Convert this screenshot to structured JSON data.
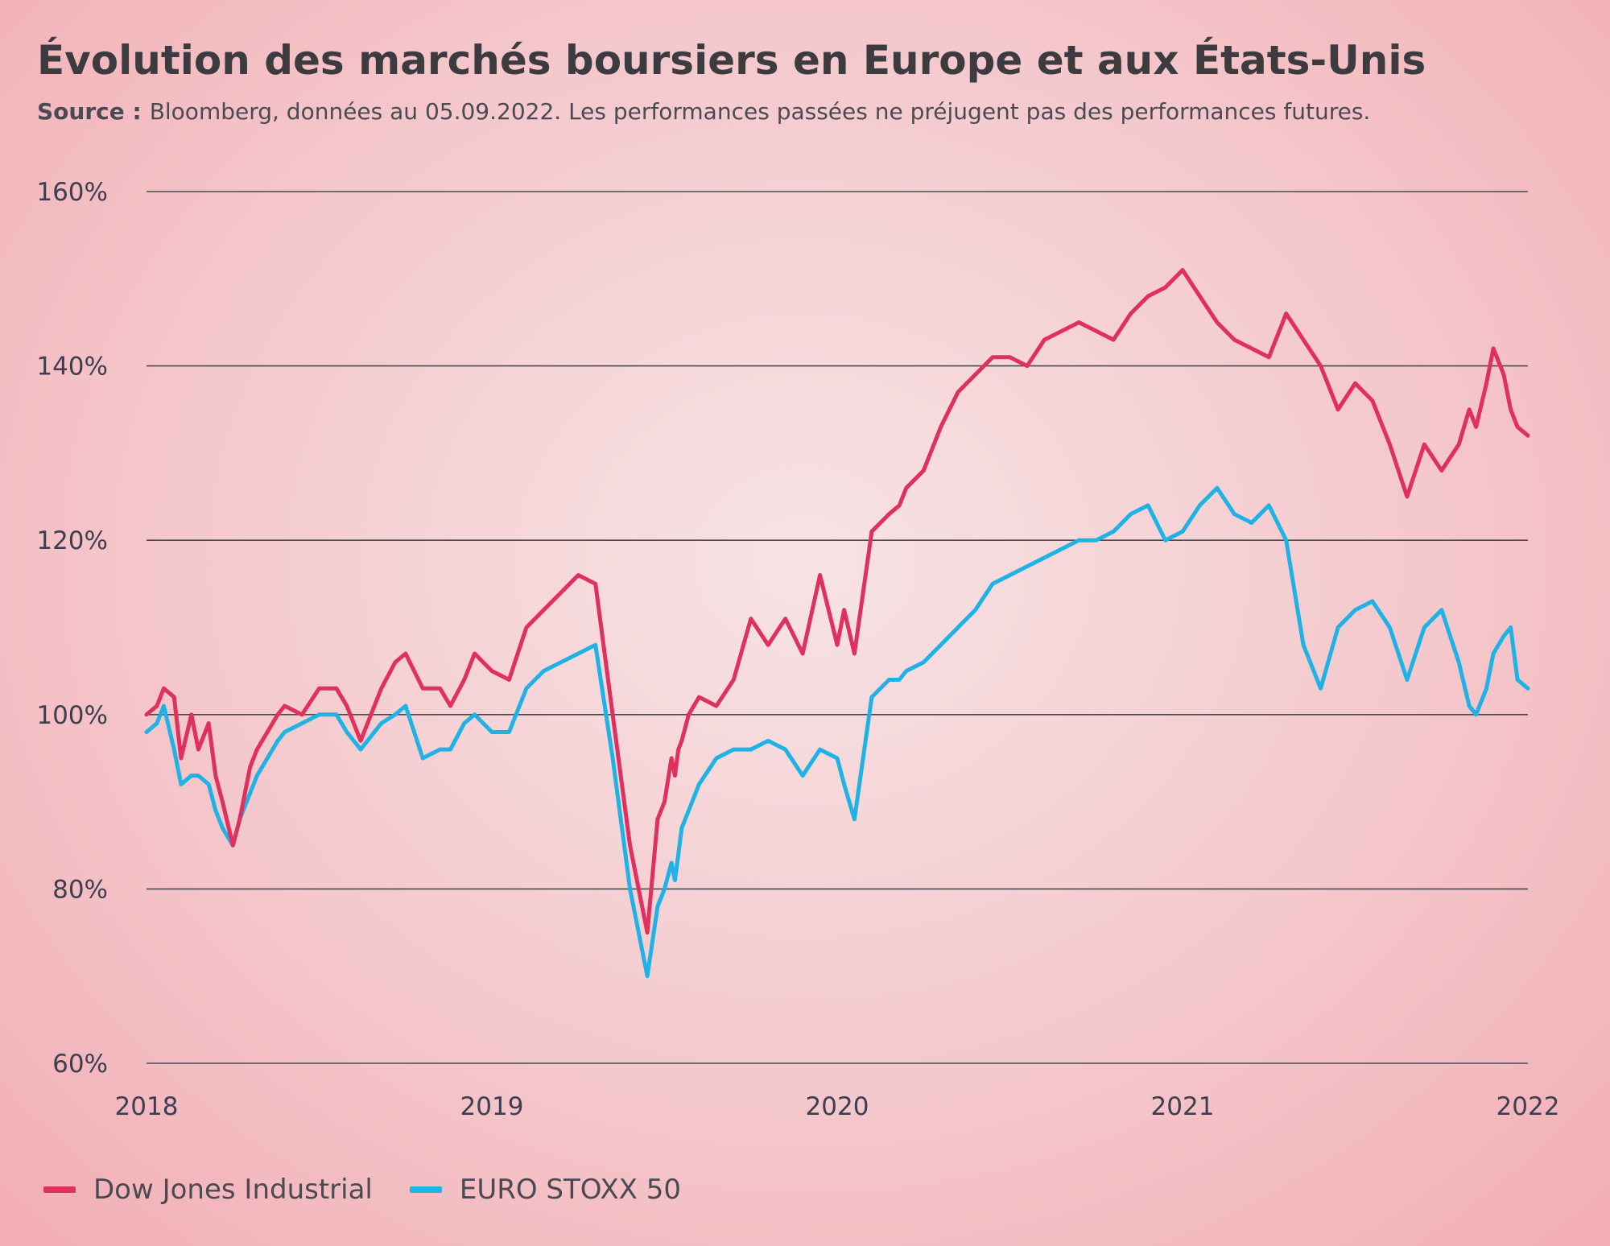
{
  "title": "Évolution des marchés boursiers en Europe et aux États-Unis",
  "subtitle": {
    "source_label": "Source :",
    "text": "Bloomberg, données au 05.09.2022.  Les performances passées ne préjugent pas des performances futures."
  },
  "colors": {
    "dow": "#e0305e",
    "stoxx": "#1fb2e6",
    "grid": "#4a4a50",
    "tick_text": "#3e3e52"
  },
  "legend": [
    {
      "label": "Dow Jones Industrial",
      "color": "#e0305e"
    },
    {
      "label": "EURO STOXX 50",
      "color": "#1fb2e6"
    }
  ],
  "chart_data": {
    "type": "line",
    "title": "Évolution des marchés boursiers en Europe et aux États-Unis",
    "xlabel": "",
    "ylabel": "",
    "x_ticks": [
      "2018",
      "2019",
      "2020",
      "2021",
      "2022"
    ],
    "y_ticks": [
      "60%",
      "80%",
      "100%",
      "120%",
      "140%",
      "160%"
    ],
    "xlim": [
      2018.0,
      2022.0
    ],
    "ylim": [
      60,
      160
    ],
    "grid": "horizontal",
    "legend_position": "bottom-left",
    "series": [
      {
        "name": "Dow Jones Industrial",
        "color": "#e0305e",
        "x": [
          2018.0,
          2018.03,
          2018.05,
          2018.08,
          2018.1,
          2018.13,
          2018.15,
          2018.18,
          2018.2,
          2018.22,
          2018.25,
          2018.27,
          2018.28,
          2018.3,
          2018.32,
          2018.35,
          2018.38,
          2018.4,
          2018.45,
          2018.5,
          2018.55,
          2018.58,
          2018.62,
          2018.68,
          2018.72,
          2018.75,
          2018.8,
          2018.85,
          2018.88,
          2018.92,
          2018.95,
          2019.0,
          2019.05,
          2019.1,
          2019.15,
          2019.2,
          2019.25,
          2019.3,
          2019.35,
          2019.4,
          2019.45,
          2019.48,
          2019.5,
          2019.52,
          2019.53,
          2019.54,
          2019.55,
          2019.57,
          2019.6,
          2019.65,
          2019.7,
          2019.75,
          2019.8,
          2019.85,
          2019.9,
          2019.95,
          2020.0,
          2020.02,
          2020.05,
          2020.1,
          2020.15,
          2020.18,
          2020.2,
          2020.25,
          2020.3,
          2020.35,
          2020.4,
          2020.45,
          2020.5,
          2020.55,
          2020.6,
          2020.65,
          2020.7,
          2020.75,
          2020.8,
          2020.85,
          2020.9,
          2020.95,
          2021.0,
          2021.05,
          2021.1,
          2021.15,
          2021.2,
          2021.25,
          2021.3,
          2021.35,
          2021.4,
          2021.45,
          2021.5,
          2021.55,
          2021.6,
          2021.65,
          2021.7,
          2021.75,
          2021.8,
          2021.83,
          2021.85,
          2021.88,
          2021.9,
          2021.93,
          2021.95,
          2021.97,
          2022.0
        ],
        "values": [
          100,
          101,
          103,
          102,
          95,
          100,
          96,
          99,
          93,
          90,
          85,
          88,
          90,
          94,
          96,
          98,
          100,
          101,
          100,
          103,
          103,
          101,
          97,
          103,
          106,
          107,
          103,
          103,
          101,
          104,
          107,
          105,
          104,
          110,
          112,
          114,
          116,
          115,
          100,
          85,
          75,
          88,
          90,
          95,
          93,
          96,
          97,
          100,
          102,
          101,
          104,
          111,
          108,
          111,
          107,
          116,
          108,
          112,
          107,
          121,
          123,
          124,
          126,
          128,
          133,
          137,
          139,
          141,
          141,
          140,
          143,
          144,
          145,
          144,
          143,
          146,
          148,
          149,
          151,
          148,
          145,
          143,
          142,
          141,
          146,
          143,
          140,
          135,
          138,
          136,
          131,
          125,
          131,
          128,
          131,
          135,
          133,
          138,
          142,
          139,
          135,
          133,
          132
        ]
      },
      {
        "name": "EURO STOXX 50",
        "color": "#1fb2e6",
        "x": [
          2018.0,
          2018.03,
          2018.05,
          2018.08,
          2018.1,
          2018.13,
          2018.15,
          2018.18,
          2018.2,
          2018.22,
          2018.25,
          2018.27,
          2018.28,
          2018.3,
          2018.32,
          2018.35,
          2018.38,
          2018.4,
          2018.45,
          2018.5,
          2018.55,
          2018.58,
          2018.62,
          2018.68,
          2018.72,
          2018.75,
          2018.8,
          2018.85,
          2018.88,
          2018.92,
          2018.95,
          2019.0,
          2019.05,
          2019.1,
          2019.15,
          2019.2,
          2019.25,
          2019.3,
          2019.35,
          2019.4,
          2019.45,
          2019.48,
          2019.5,
          2019.52,
          2019.53,
          2019.54,
          2019.55,
          2019.57,
          2019.6,
          2019.65,
          2019.7,
          2019.75,
          2019.8,
          2019.85,
          2019.9,
          2019.95,
          2020.0,
          2020.02,
          2020.05,
          2020.1,
          2020.15,
          2020.18,
          2020.2,
          2020.25,
          2020.3,
          2020.35,
          2020.4,
          2020.45,
          2020.5,
          2020.55,
          2020.6,
          2020.65,
          2020.7,
          2020.75,
          2020.8,
          2020.85,
          2020.9,
          2020.95,
          2021.0,
          2021.05,
          2021.1,
          2021.15,
          2021.2,
          2021.25,
          2021.3,
          2021.35,
          2021.4,
          2021.45,
          2021.5,
          2021.55,
          2021.6,
          2021.65,
          2021.7,
          2021.75,
          2021.8,
          2021.83,
          2021.85,
          2021.88,
          2021.9,
          2021.93,
          2021.95,
          2021.97,
          2022.0
        ],
        "values": [
          98,
          99,
          101,
          96,
          92,
          93,
          93,
          92,
          89,
          87,
          85,
          88,
          89,
          91,
          93,
          95,
          97,
          98,
          99,
          100,
          100,
          98,
          96,
          99,
          100,
          101,
          95,
          96,
          96,
          99,
          100,
          98,
          98,
          103,
          105,
          106,
          107,
          108,
          95,
          80,
          70,
          78,
          80,
          83,
          81,
          84,
          87,
          89,
          92,
          95,
          96,
          96,
          97,
          96,
          93,
          96,
          95,
          92,
          88,
          102,
          104,
          104,
          105,
          106,
          108,
          110,
          112,
          115,
          116,
          117,
          118,
          119,
          120,
          120,
          121,
          123,
          124,
          120,
          121,
          124,
          126,
          123,
          122,
          124,
          120,
          108,
          103,
          110,
          112,
          113,
          110,
          104,
          110,
          112,
          106,
          101,
          100,
          103,
          107,
          109,
          110,
          104,
          103
        ]
      }
    ]
  }
}
